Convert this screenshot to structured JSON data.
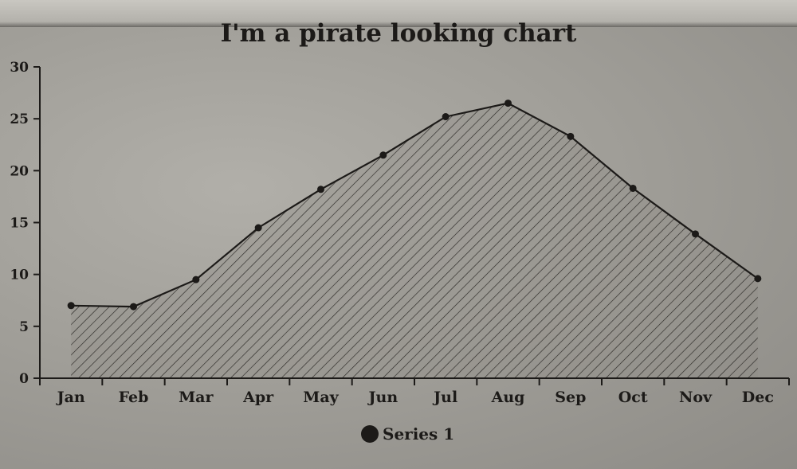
{
  "chart_data": {
    "type": "area",
    "title": "I'm a pirate looking chart",
    "categories": [
      "Jan",
      "Feb",
      "Mar",
      "Apr",
      "May",
      "Jun",
      "Jul",
      "Aug",
      "Sep",
      "Oct",
      "Nov",
      "Dec"
    ],
    "series": [
      {
        "name": "Series 1",
        "values": [
          7.0,
          6.9,
          9.5,
          14.5,
          18.2,
          21.5,
          25.2,
          26.5,
          23.3,
          18.3,
          13.9,
          9.6
        ]
      }
    ],
    "ylim": [
      0,
      30
    ],
    "yticks": [
      0,
      5,
      10,
      15,
      20,
      25,
      30
    ],
    "xlabel": "",
    "ylabel": "",
    "grid": false,
    "legend_position": "bottom-center",
    "colors": {
      "ink": "#1c1a18",
      "fill": "#8f8d88"
    }
  }
}
